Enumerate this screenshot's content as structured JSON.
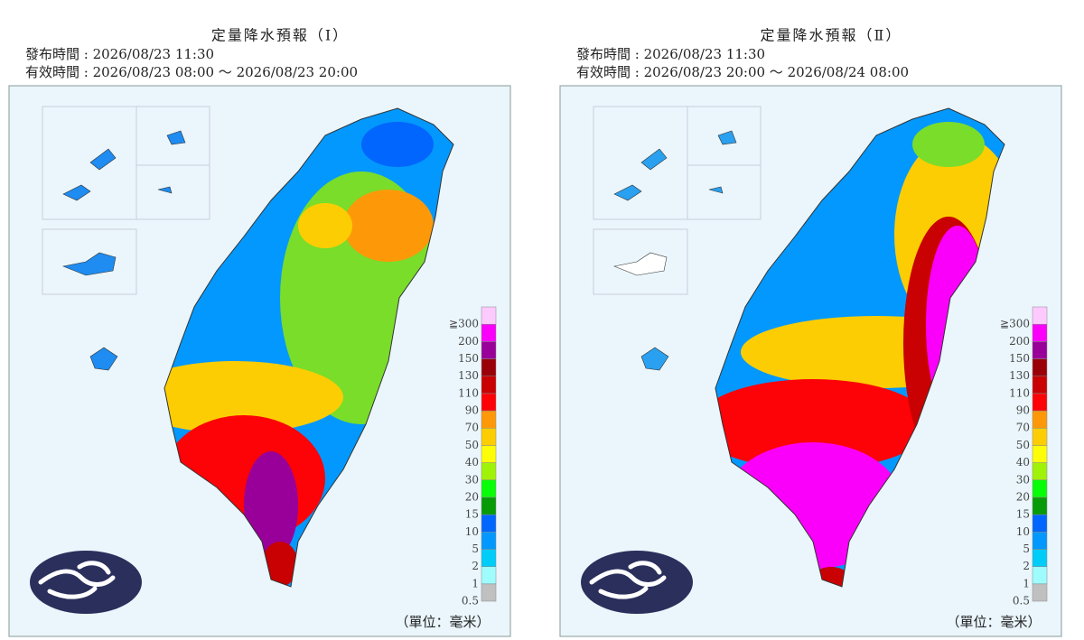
{
  "panels": [
    {
      "title": "定量降水預報（Ⅰ）",
      "issued": "發布時間 : 2026/08/23 11:30",
      "valid": "有效時間 : 2026/08/23 08:00 ～ 2026/08/23 20:00",
      "unit": "（單位：毫米）"
    },
    {
      "title": "定量降水預報（Ⅱ）",
      "issued": "發布時間 : 2026/08/23 11:30",
      "valid": "有效時間 : 2026/08/23 20:00 ～ 2026/08/24 08:00",
      "unit": "（單位：毫米）"
    }
  ],
  "legend": {
    "labels": [
      "0.5",
      "1",
      "2",
      "5",
      "10",
      "15",
      "20",
      "30",
      "40",
      "50",
      "70",
      "90",
      "110",
      "130",
      "150",
      "200",
      "≧300"
    ],
    "colors": [
      "#c0c0c0",
      "#9ffcfc",
      "#00ccf8",
      "#0398fd",
      "#0166fd",
      "#079b07",
      "#08fd08",
      "#9ff309",
      "#fdfd09",
      "#fdcd03",
      "#fd9908",
      "#fd0207",
      "#c90103",
      "#9a0008",
      "#990099",
      "#fa00fa",
      "#fdcafd"
    ]
  }
}
